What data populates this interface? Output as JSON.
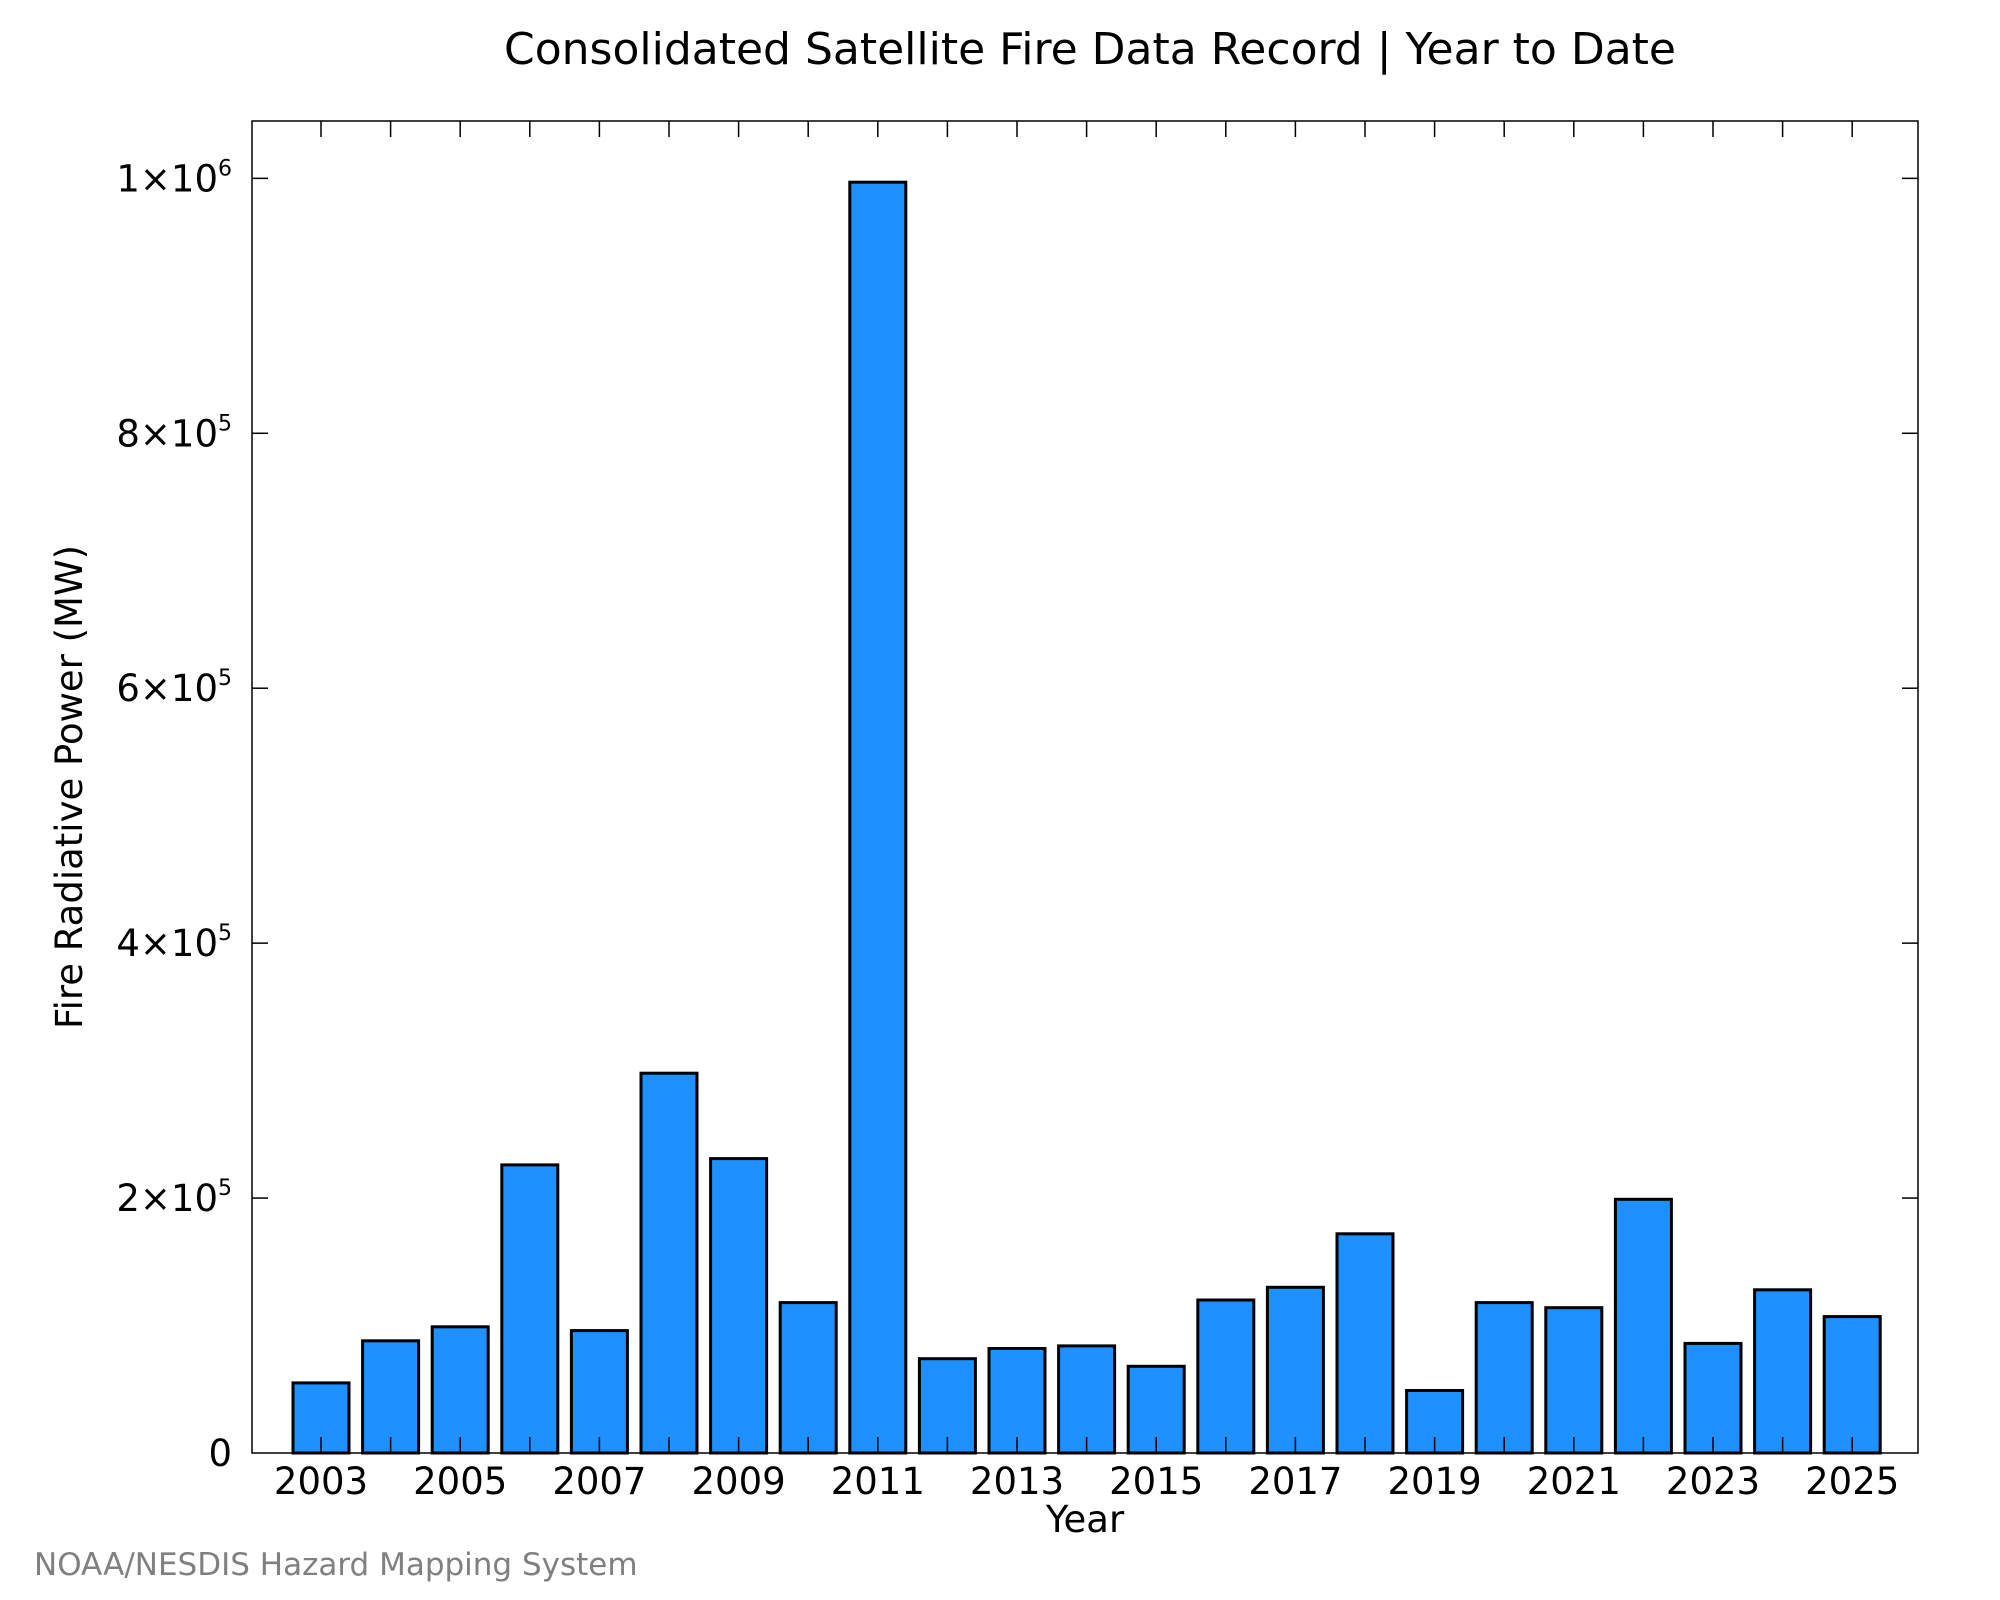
{
  "chart_data": {
    "type": "bar",
    "title": "Consolidated Satellite Fire Data Record | Year to Date",
    "xlabel": "Year",
    "ylabel": "Fire Radiative Power (MW)",
    "categories": [
      "2003",
      "2004",
      "2005",
      "2006",
      "2007",
      "2008",
      "2009",
      "2010",
      "2011",
      "2012",
      "2013",
      "2014",
      "2015",
      "2016",
      "2017",
      "2018",
      "2019",
      "2020",
      "2021",
      "2022",
      "2023",
      "2024",
      "2025"
    ],
    "values": [
      55000,
      88000,
      99000,
      226000,
      96000,
      298000,
      231000,
      118000,
      997000,
      74000,
      82000,
      84000,
      68000,
      120000,
      130000,
      172000,
      49000,
      118000,
      114000,
      199000,
      86000,
      128000,
      107000
    ],
    "x_tick_labels": [
      "2003",
      "2005",
      "2007",
      "2009",
      "2011",
      "2013",
      "2015",
      "2017",
      "2019",
      "2021",
      "2023",
      "2025"
    ],
    "y_ticks": [
      {
        "value": 0,
        "mantissa": "0",
        "exponent": ""
      },
      {
        "value": 200000,
        "mantissa": "2×10",
        "exponent": "5"
      },
      {
        "value": 400000,
        "mantissa": "4×10",
        "exponent": "5"
      },
      {
        "value": 600000,
        "mantissa": "6×10",
        "exponent": "5"
      },
      {
        "value": 800000,
        "mantissa": "8×10",
        "exponent": "5"
      },
      {
        "value": 1000000,
        "mantissa": "1×10",
        "exponent": "6"
      }
    ],
    "ylim": [
      0,
      1045000
    ],
    "bar_color": "#1e90ff",
    "bar_edge_color": "#000000",
    "grid": false,
    "legend": false
  },
  "credit": "NOAA/NESDIS Hazard Mapping System"
}
